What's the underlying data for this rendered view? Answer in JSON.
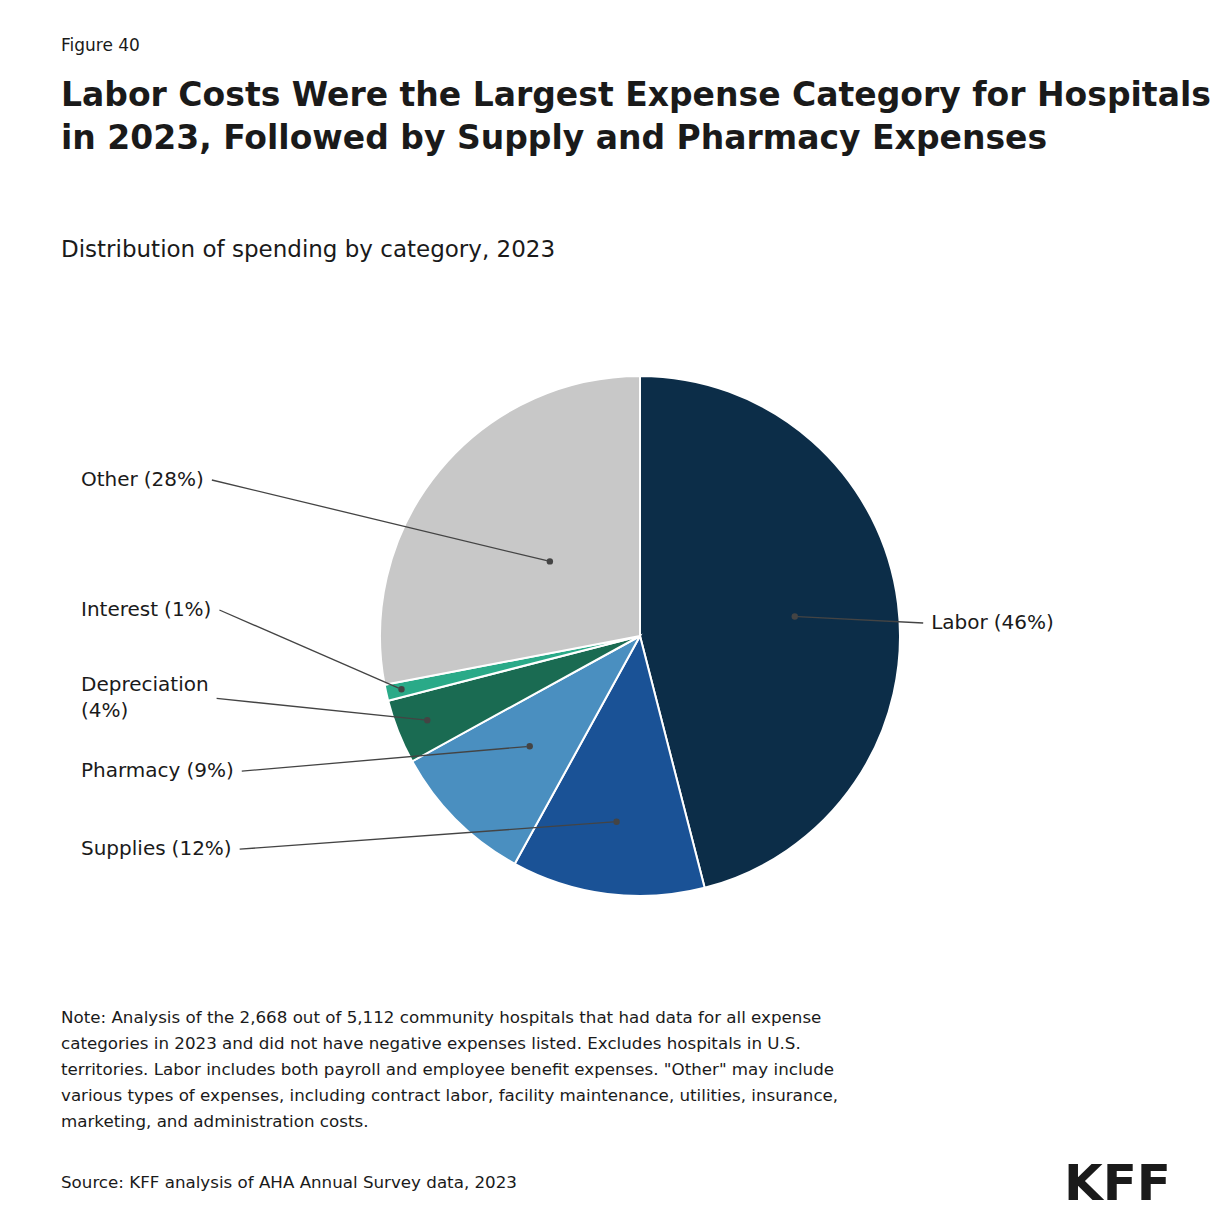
{
  "chart_data": {
    "type": "pie",
    "figure_label": "Figure 40",
    "title": "Labor Costs Were the Largest Expense Category for Hospitals\nin 2023, Followed by Supply and Pharmacy Expenses",
    "subtitle": "Distribution of spending by category, 2023",
    "categories": [
      "Labor",
      "Supplies",
      "Pharmacy",
      "Depreciation",
      "Interest",
      "Other"
    ],
    "values": [
      46,
      12,
      9,
      4,
      1,
      28
    ],
    "value_labels": [
      "(46%)",
      "(12%)",
      "(9%)",
      "(4%)",
      "(1%)",
      "(28%)"
    ],
    "colors": [
      "#0c2d48",
      "#1a5296",
      "#4a8fc0",
      "#1a6b52",
      "#2aaa88",
      "#c8c8c8"
    ],
    "data_labels": true,
    "note": "Note: Analysis of the 2,668 out of 5,112 community hospitals that had data for all expense\ncategories in 2023 and did not have negative expenses listed. Excludes hospitals in U.S.\nterritories. Labor includes both payroll and employee benefit expenses. \"Other\" may include\nvarious types of expenses, including contract labor, facility maintenance, utilities, insurance,\nmarketing, and administration costs.",
    "source": "Source: KFF analysis of AHA Annual Survey data, 2023",
    "credit": "KFF"
  }
}
